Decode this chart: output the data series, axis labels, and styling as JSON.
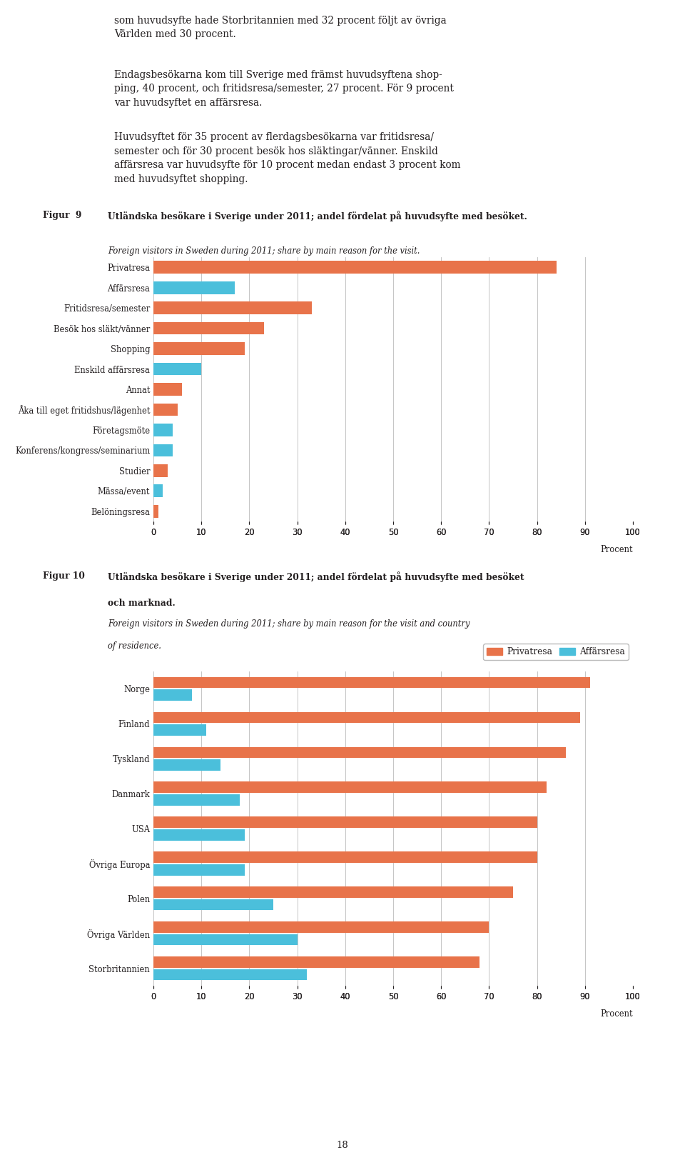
{
  "fig9": {
    "categories": [
      "Privatresa",
      "Affärsresa",
      "Fritidsresa/semester",
      "Besök hos släkt/vänner",
      "Shopping",
      "Enskild affärsresa",
      "Annat",
      "Åka till eget fritidshus/lägenhet",
      "Företagsmöte",
      "Konferens/kongress/seminarium",
      "Studier",
      "Mässa/event",
      "Belöningsresa"
    ],
    "values": [
      84,
      17,
      33,
      23,
      19,
      10,
      6,
      5,
      4,
      4,
      3,
      2,
      1
    ],
    "colors": [
      "#E8734A",
      "#4BBFDB",
      "#E8734A",
      "#E8734A",
      "#E8734A",
      "#4BBFDB",
      "#E8734A",
      "#E8734A",
      "#4BBFDB",
      "#4BBFDB",
      "#E8734A",
      "#4BBFDB",
      "#E8734A"
    ],
    "xticks": [
      0,
      10,
      20,
      30,
      40,
      50,
      60,
      70,
      80,
      90,
      100
    ]
  },
  "fig10": {
    "categories": [
      "Norge",
      "Finland",
      "Tyskland",
      "Danmark",
      "USA",
      "Övriga Europa",
      "Polen",
      "Övriga Världen",
      "Storbritannien"
    ],
    "privatresa": [
      91,
      89,
      86,
      82,
      80,
      80,
      75,
      70,
      68
    ],
    "affarsresa": [
      8,
      11,
      14,
      18,
      19,
      19,
      25,
      30,
      32
    ],
    "xticks": [
      0,
      10,
      20,
      30,
      40,
      50,
      60,
      70,
      80,
      90,
      100
    ],
    "color_privatresa": "#E8734A",
    "color_affarsresa": "#4BBFDB"
  },
  "body_lines": [
    "som huvudsyfte hade Storbritannien med 32 procent följt av övriga Världen med 30 procent.",
    " ",
    "Endagsbesökarna kom till Sverige med främst huvudsyftena shopping, 40 procent, och fritidsresa/semester, 27 procent. För 9 procent var huvudsyftet en affärsresa.",
    " ",
    "Huvudsyftet för 35 procent av flerdagsbesökarna var fritidsresa/semester och för 30 procent besök hos släktingar/vänner. Enskild affärsresa var huvudsyfte för 10 procent medan endast 3 procent kom med huvudsyftet shopping."
  ],
  "page_number": "18",
  "background_color": "#FFFFFF",
  "text_color": "#231F20",
  "grid_color": "#BBBBBB"
}
